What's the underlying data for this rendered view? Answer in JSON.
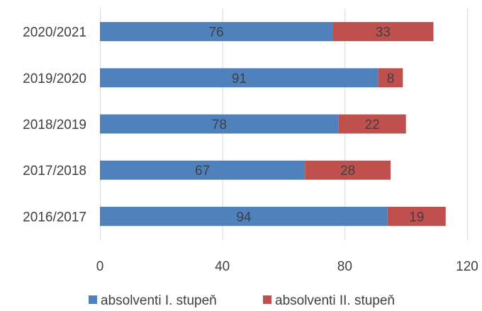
{
  "chart_data": {
    "type": "bar",
    "orientation": "horizontal",
    "stacked": true,
    "categories": [
      "2016/2017",
      "2017/2018",
      "2018/2019",
      "2019/2020",
      "2020/2021"
    ],
    "series": [
      {
        "name": "absolventi I. stupeň",
        "values": [
          94,
          67,
          78,
          91,
          76
        ],
        "color": "#4f81bd"
      },
      {
        "name": "absolventi II. stupeň",
        "values": [
          19,
          28,
          22,
          8,
          33
        ],
        "color": "#c0504d"
      }
    ],
    "xlim": [
      0,
      120
    ],
    "xticks": [
      0,
      40,
      80,
      120
    ],
    "grid": true,
    "legend": "bottom",
    "data_labels": true,
    "title": "",
    "xlabel": "",
    "ylabel": ""
  }
}
